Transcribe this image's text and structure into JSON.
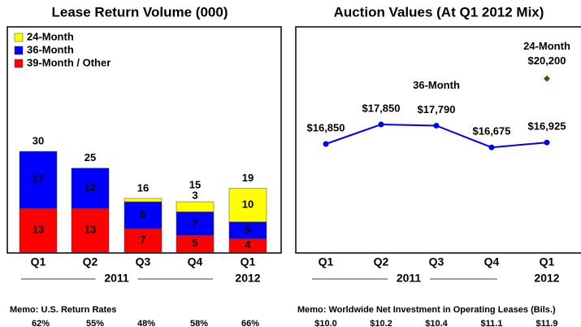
{
  "chart_data": [
    {
      "type": "bar",
      "stacked": true,
      "title": "Lease Return Volume (000)",
      "categories": [
        "Q1",
        "Q2",
        "Q3",
        "Q4",
        "Q1"
      ],
      "groups": [
        {
          "label": "2011",
          "span": [
            0,
            3
          ]
        },
        {
          "label": "2012",
          "span": [
            4,
            4
          ]
        }
      ],
      "series": [
        {
          "name": "39-Month / Other",
          "color": "#ff0000",
          "values": [
            13,
            13,
            7,
            5,
            4
          ]
        },
        {
          "name": "36-Month",
          "color": "#0000ff",
          "values": [
            17,
            12,
            8,
            7,
            5
          ]
        },
        {
          "name": "24-Month",
          "color": "#ffff00",
          "values": [
            null,
            null,
            1,
            3,
            10
          ],
          "value_labels": [
            null,
            null,
            null,
            "3",
            "10"
          ]
        }
      ],
      "totals": [
        30,
        25,
        16,
        15,
        19
      ],
      "legend_order": [
        2,
        1,
        0
      ]
    },
    {
      "type": "line",
      "title": "Auction Values (At Q1 2012 Mix)",
      "categories": [
        "Q1",
        "Q2",
        "Q3",
        "Q4",
        "Q1"
      ],
      "groups": [
        {
          "label": "2011",
          "span": [
            0,
            3
          ]
        },
        {
          "label": "2012",
          "span": [
            4,
            4
          ]
        }
      ],
      "series": [
        {
          "name": "36-Month",
          "color": "#0000ee",
          "values": [
            16850,
            17850,
            17790,
            16675,
            16925
          ],
          "value_labels": [
            "$16,850",
            "$17,850",
            "$17,790",
            "$16,675",
            "$16,925"
          ]
        },
        {
          "name": "24-Month",
          "color": "#3d5c14",
          "marker": "diamond",
          "values": [
            null,
            null,
            null,
            null,
            20200
          ],
          "value_labels": [
            null,
            null,
            null,
            null,
            "$20,200"
          ]
        }
      ]
    }
  ],
  "memos": [
    {
      "label": "Memo:  U.S. Return Rates",
      "values": [
        "62%",
        "55%",
        "48%",
        "58%",
        "66%"
      ]
    },
    {
      "label": "Memo:  Worldwide Net Investment in Operating Leases (Bils.)",
      "values": [
        "$10.0",
        "$10.2",
        "$10.4",
        "$11.1",
        "$11.9"
      ]
    }
  ]
}
